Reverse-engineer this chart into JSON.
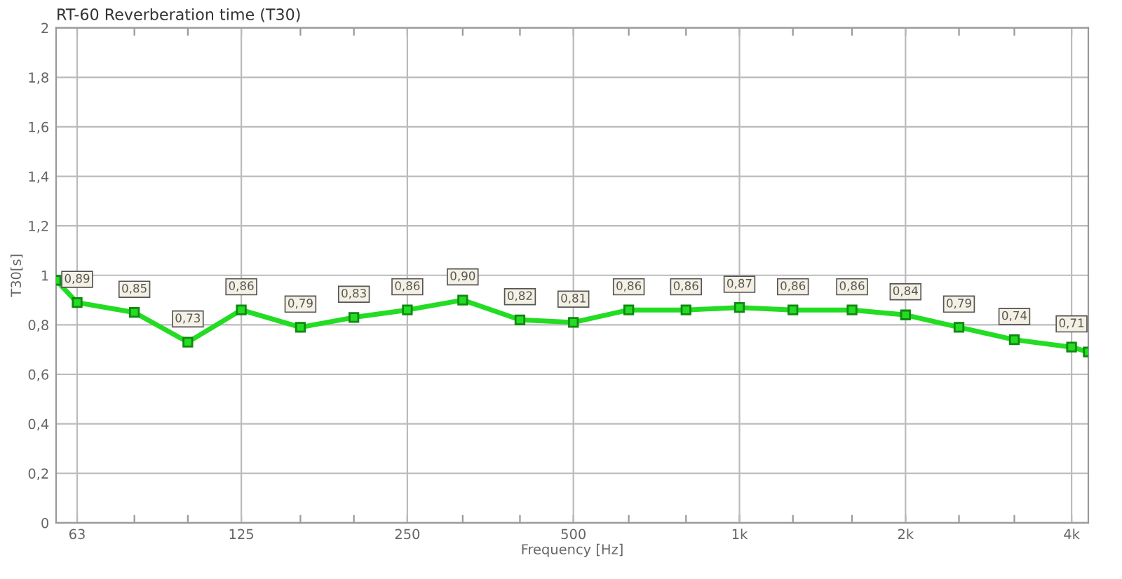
{
  "chart_data": {
    "type": "line",
    "title": "RT-60 Reverberation time (T30)",
    "xlabel": "Frequency [Hz]",
    "ylabel": "T30[s]",
    "log": "x",
    "x": [
      57.7,
      63,
      80,
      100,
      125,
      160,
      200,
      250,
      315,
      400,
      500,
      630,
      800,
      1000,
      1250,
      1600,
      2000,
      2500,
      3150,
      4000,
      4290
    ],
    "series": [
      {
        "color": "#22dd22",
        "values": [
          0.98,
          0.89,
          0.85,
          0.73,
          0.86,
          0.79,
          0.83,
          0.86,
          0.9,
          0.82,
          0.81,
          0.86,
          0.86,
          0.87,
          0.86,
          0.86,
          0.84,
          0.79,
          0.74,
          0.71,
          0.69
        ],
        "value_labels": [
          null,
          "0,89",
          "0,85",
          "0,73",
          "0,86",
          "0,79",
          "0,83",
          "0,86",
          "0,90",
          "0,82",
          "0,81",
          "0,86",
          "0,86",
          "0,87",
          "0,86",
          "0,86",
          "0,84",
          "0,79",
          "0,74",
          "0,71",
          null
        ]
      }
    ],
    "xlim": [
      57.7,
      4290
    ],
    "ylim": [
      0,
      2
    ],
    "xticks": [
      {
        "value": 63,
        "label": "63"
      },
      {
        "value": 80,
        "label": null
      },
      {
        "value": 100,
        "label": null
      },
      {
        "value": 125,
        "label": "125"
      },
      {
        "value": 160,
        "label": null
      },
      {
        "value": 200,
        "label": null
      },
      {
        "value": 250,
        "label": "250"
      },
      {
        "value": 315,
        "label": null
      },
      {
        "value": 400,
        "label": null
      },
      {
        "value": 500,
        "label": "500"
      },
      {
        "value": 630,
        "label": null
      },
      {
        "value": 800,
        "label": null
      },
      {
        "value": 1000,
        "label": "1k"
      },
      {
        "value": 1250,
        "label": null
      },
      {
        "value": 1600,
        "label": null
      },
      {
        "value": 2000,
        "label": "2k"
      },
      {
        "value": 2500,
        "label": null
      },
      {
        "value": 3150,
        "label": null
      },
      {
        "value": 4000,
        "label": "4k"
      }
    ],
    "yticks": [
      0,
      {
        "value": 0.2,
        "label": "0,2"
      },
      {
        "value": 0.4,
        "label": "0,4"
      },
      {
        "value": 0.6,
        "label": "0,6"
      },
      {
        "value": 0.8,
        "label": "0,8"
      },
      1,
      {
        "value": 1.2,
        "label": "1,2"
      },
      {
        "value": 1.4,
        "label": "1,4"
      },
      {
        "value": 1.6,
        "label": "1,6"
      },
      {
        "value": 1.8,
        "label": "1,8"
      },
      2
    ],
    "grid": true,
    "marker": "square",
    "line_style": "solid"
  }
}
